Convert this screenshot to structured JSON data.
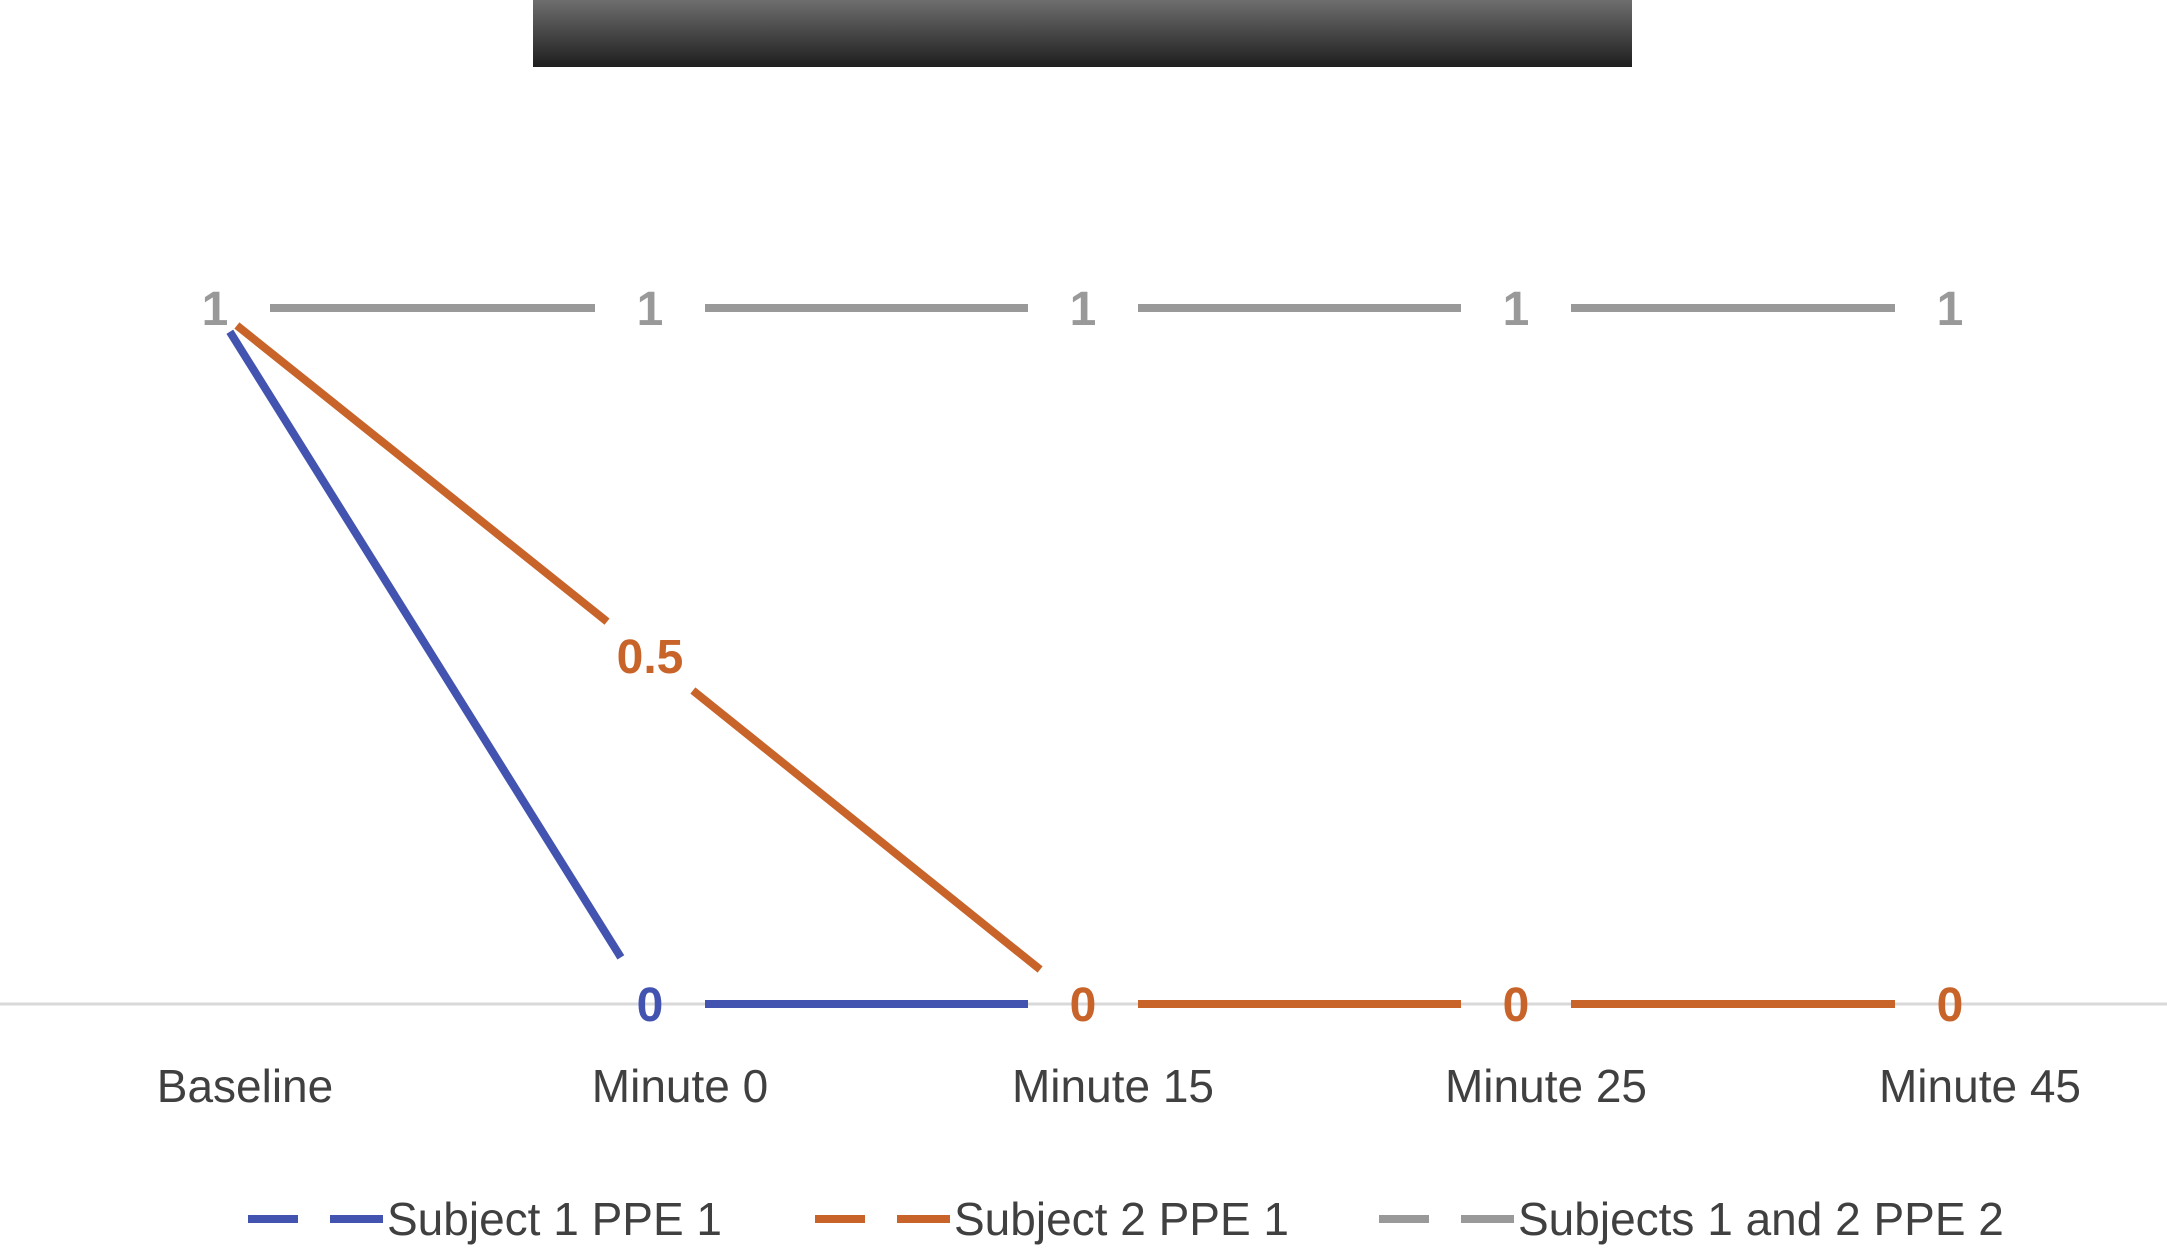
{
  "chart_data": {
    "type": "line",
    "title": "",
    "xlabel": "",
    "ylabel": "",
    "categories": [
      "Baseline",
      "Minute 0",
      "Minute 15",
      "Minute 25",
      "Minute 45"
    ],
    "ylim": [
      0,
      1
    ],
    "grid": false,
    "legend_position": "bottom",
    "series": [
      {
        "name": "Subject 1 PPE 1",
        "color": "#4353b0",
        "values": [
          1,
          0,
          0,
          null,
          null
        ],
        "labels": [
          "",
          "0",
          "",
          "",
          ""
        ]
      },
      {
        "name": "Subject 2 PPE 1",
        "color": "#c8642a",
        "values": [
          1,
          0.5,
          0,
          0,
          0
        ],
        "labels": [
          "",
          "0.5",
          "0",
          "0",
          "0"
        ]
      },
      {
        "name": "Subjects 1 and 2 PPE 2",
        "color": "#999999",
        "values": [
          1,
          1,
          1,
          1,
          1
        ],
        "labels": [
          "1",
          "1",
          "1",
          "1",
          "1"
        ]
      }
    ]
  }
}
